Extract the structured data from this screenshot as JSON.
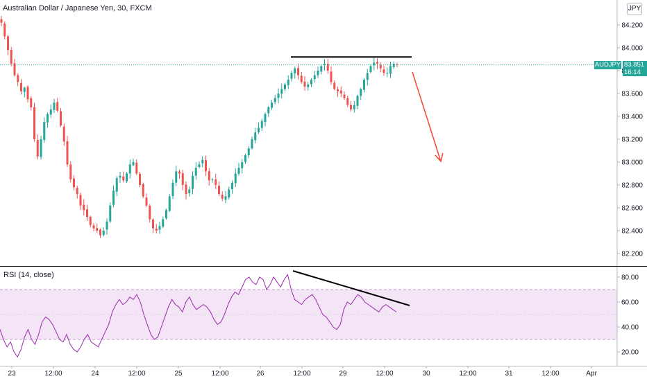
{
  "header": {
    "title": "Australian Dollar / Japanese Yen, 30, FXCM",
    "currency_badge": "JPY"
  },
  "price_tag": {
    "symbol": "AUDJPY",
    "price": "83.851",
    "countdown": "16:14",
    "color": "#26a69a"
  },
  "colors": {
    "up": "#26a69a",
    "down": "#ef5350",
    "rsi_line": "#9c27b0",
    "rsi_band": "#f3e5f5",
    "arrow": "#f44336",
    "trendline": "#000000",
    "current_price_line": "#26a69a"
  },
  "chart_data": [
    {
      "type": "candlestick",
      "symbol": "AUDJPY",
      "interval": "30",
      "y_ticks": [
        "82.200",
        "82.400",
        "82.600",
        "82.800",
        "83.000",
        "83.200",
        "83.400",
        "83.600",
        "83.800",
        "84.000",
        "84.200"
      ],
      "ylim": [
        82.1,
        84.4
      ],
      "x_ticks": [
        "23",
        "12:00",
        "24",
        "12:00",
        "25",
        "12:00",
        "26",
        "12:00",
        "29",
        "12:00",
        "30",
        "12:00",
        "31",
        "12:00",
        "Apr"
      ],
      "current_price": 83.851,
      "close_path": [
        84.22,
        84.1,
        83.98,
        83.86,
        83.76,
        83.7,
        83.62,
        83.65,
        83.55,
        83.48,
        83.2,
        83.05,
        83.2,
        83.35,
        83.42,
        83.46,
        83.52,
        83.45,
        83.32,
        83.18,
        82.98,
        82.85,
        82.78,
        82.72,
        82.62,
        82.58,
        82.52,
        82.45,
        82.42,
        82.4,
        82.36,
        82.4,
        82.48,
        82.62,
        82.75,
        82.86,
        82.88,
        82.84,
        82.9,
        82.98,
        83.0,
        82.9,
        82.8,
        82.7,
        82.62,
        82.5,
        82.42,
        82.4,
        82.44,
        82.5,
        82.58,
        82.7,
        82.82,
        82.92,
        82.9,
        82.8,
        82.72,
        82.76,
        82.88,
        82.95,
        82.98,
        83.02,
        82.92,
        82.84,
        82.85,
        82.8,
        82.72,
        82.68,
        82.7,
        82.76,
        82.82,
        82.9,
        82.95,
        83.0,
        83.06,
        83.12,
        83.2,
        83.26,
        83.3,
        83.36,
        83.42,
        83.48,
        83.52,
        83.56,
        83.6,
        83.64,
        83.68,
        83.72,
        83.78,
        83.82,
        83.76,
        83.7,
        83.66,
        83.68,
        83.72,
        83.76,
        83.8,
        83.84,
        83.86,
        83.8,
        83.7,
        83.64,
        83.62,
        83.6,
        83.56,
        83.5,
        83.46,
        83.5,
        83.58,
        83.64,
        83.72,
        83.78,
        83.84,
        83.87,
        83.86,
        83.82,
        83.78,
        83.78,
        83.84,
        83.86,
        83.85
      ],
      "overlays": [
        {
          "kind": "horizontal_trendline",
          "y": 83.92
        },
        {
          "kind": "down_arrow"
        }
      ]
    },
    {
      "type": "line",
      "title": "RSI (14, close)",
      "y_ticks": [
        "20.00",
        "40.00",
        "60.00",
        "80.00"
      ],
      "ylim": [
        10,
        88
      ],
      "bands": [
        30,
        70
      ],
      "values": [
        38,
        30,
        24,
        28,
        20,
        16,
        22,
        32,
        38,
        30,
        26,
        34,
        44,
        48,
        46,
        42,
        36,
        30,
        28,
        34,
        26,
        22,
        20,
        24,
        30,
        34,
        28,
        26,
        24,
        30,
        36,
        42,
        52,
        58,
        62,
        58,
        60,
        64,
        62,
        66,
        60,
        50,
        42,
        34,
        30,
        32,
        40,
        48,
        56,
        62,
        58,
        56,
        52,
        60,
        64,
        58,
        54,
        56,
        58,
        56,
        52,
        46,
        42,
        44,
        50,
        58,
        64,
        68,
        66,
        72,
        78,
        80,
        76,
        74,
        80,
        78,
        70,
        74,
        80,
        76,
        72,
        78,
        82,
        70,
        62,
        60,
        58,
        62,
        64,
        66,
        62,
        56,
        50,
        48,
        44,
        40,
        38,
        42,
        54,
        60,
        58,
        62,
        66,
        64,
        60,
        58,
        56,
        54,
        52,
        56,
        58,
        56,
        54,
        52
      ],
      "overlays": [
        {
          "kind": "descending_trendline"
        }
      ]
    }
  ]
}
